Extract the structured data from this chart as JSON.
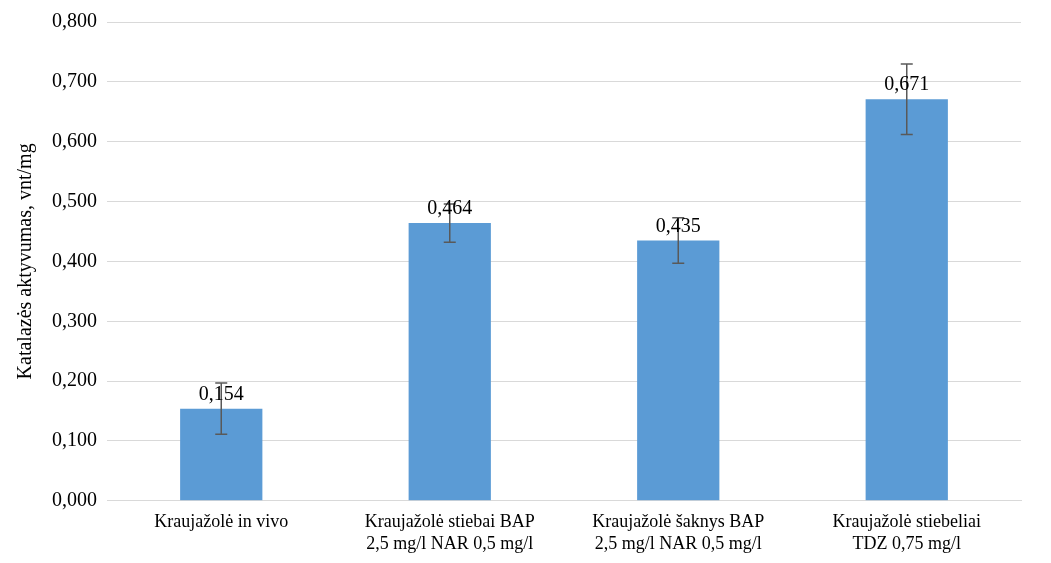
{
  "chart_data": {
    "type": "bar",
    "ylabel": "Katalazės aktyvumas, vnt/mg",
    "categories": [
      "Kraujažolė in vivo",
      "Kraujažolė stiebai BAP 2,5 mg/l NAR 0,5 mg/l",
      "Kraujažolė šaknys BAP 2,5 mg/l NAR 0,5 mg/l",
      "Kraujažolė stiebeliai TDZ 0,75 mg/l"
    ],
    "values": [
      0.154,
      0.464,
      0.435,
      0.671
    ],
    "color": "#5b9bd5",
    "errors": [
      0.043,
      0.032,
      0.038,
      0.059
    ],
    "value_labels": [
      "0,154",
      "0,464",
      "0,435",
      "0,671"
    ],
    "ylim": [
      0,
      0.8
    ],
    "yticks": [
      {
        "value": 0,
        "label": "0,000"
      },
      {
        "value": 0.1,
        "label": "0,100"
      },
      {
        "value": 0.2,
        "label": "0,200"
      },
      {
        "value": 0.3,
        "label": "0,300"
      },
      {
        "value": 0.4,
        "label": "0,400"
      },
      {
        "value": 0.5,
        "label": "0,500"
      },
      {
        "value": 0.6,
        "label": "0,600"
      },
      {
        "value": 0.7,
        "label": "0,700"
      },
      {
        "value": 0.8,
        "label": "0,800"
      }
    ],
    "grid": "y",
    "legend": false
  }
}
